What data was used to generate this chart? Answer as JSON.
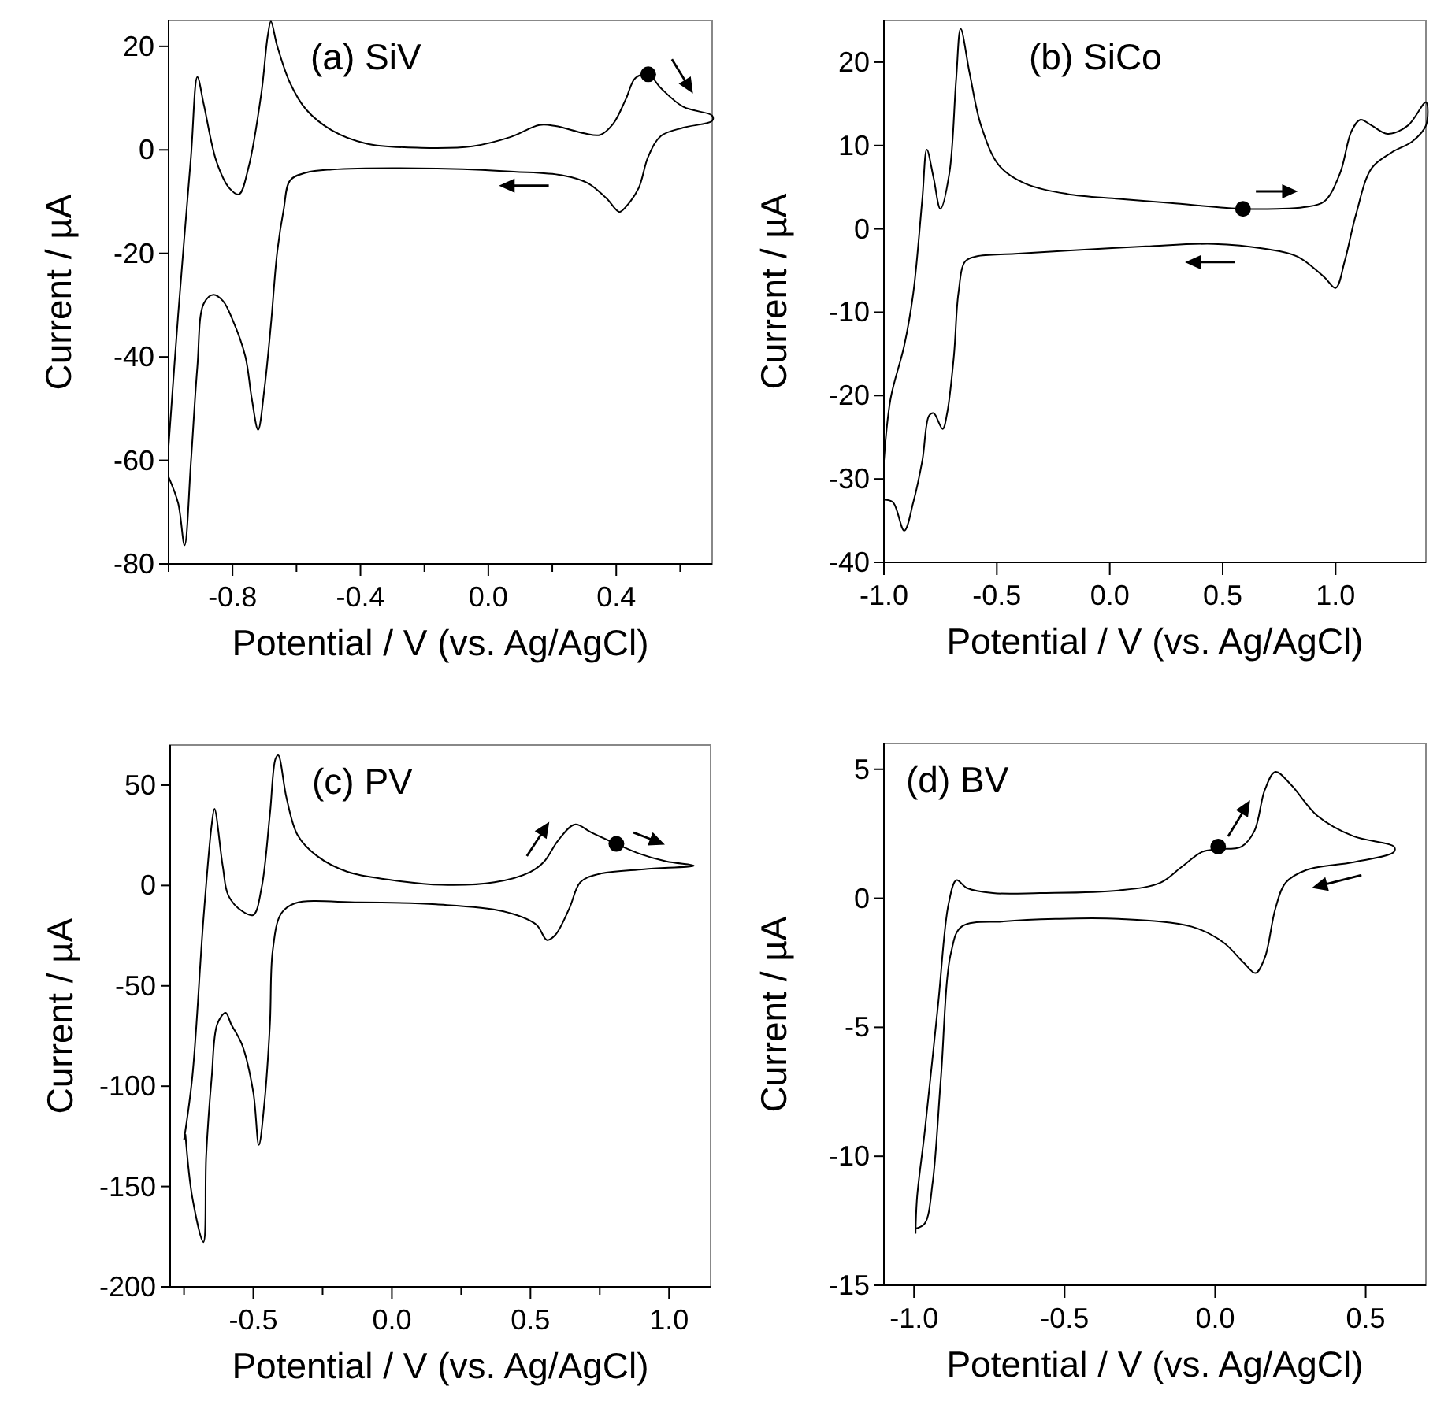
{
  "chart_data": [
    {
      "type": "line",
      "title": "(a) SiV",
      "xlabel": "Potential / V (vs. Ag/AgCl)",
      "ylabel": "Current / µA",
      "xlim": [
        -1.0,
        0.7
      ],
      "ylim": [
        -80,
        25
      ],
      "xticks": [
        {
          "value": -1.0,
          "label": null
        },
        -0.8,
        {
          "value": -0.6,
          "label": null
        },
        -0.4,
        {
          "value": -0.2,
          "label": null
        },
        {
          "value": 0,
          "label": "0.0"
        },
        {
          "value": 0.2,
          "label": null
        },
        0.4,
        {
          "value": 0.6,
          "label": null
        }
      ],
      "yticks": [
        -80,
        -60,
        -40,
        -20,
        0,
        20
      ],
      "marker": "none",
      "line_style": "solid",
      "series": [
        {
          "color": "#000000",
          "x": [
            -1.0,
            -0.97,
            -0.93,
            -0.91,
            -0.89,
            -0.85,
            -0.81,
            -0.78,
            -0.75,
            -0.71,
            -0.69,
            -0.68,
            -0.66,
            -0.62,
            -0.57,
            -0.49,
            -0.38,
            -0.21,
            -0.05,
            0.07,
            0.16,
            0.21,
            0.3,
            0.35,
            0.39,
            0.43,
            0.46,
            0.5,
            0.54,
            0.61,
            0.7,
            0.7,
            0.61,
            0.54,
            0.5,
            0.47,
            0.43,
            0.41,
            0.37,
            0.31,
            0.23,
            0.08,
            -0.16,
            -0.49,
            -0.57,
            -0.62,
            -0.64,
            -0.66,
            -0.68,
            -0.7,
            -0.72,
            -0.74,
            -0.76,
            -0.8,
            -0.83,
            -0.86,
            -0.89,
            -0.91,
            -0.93,
            -0.95,
            -0.97,
            -1.0
          ],
          "values": [
            -57.2,
            -31.8,
            -1.3,
            14.1,
            8.8,
            -2.3,
            -7.4,
            -8.6,
            -3.4,
            10.9,
            22.0,
            24.8,
            20.0,
            12.9,
            7.8,
            3.8,
            1.2,
            0.4,
            0.7,
            2.5,
            4.8,
            4.6,
            3.2,
            2.9,
            5.0,
            9.8,
            13.9,
            14.6,
            11.9,
            8.3,
            6.6,
            5.6,
            4.3,
            2.7,
            -1.3,
            -7.4,
            -11.0,
            -12.0,
            -9.4,
            -6.4,
            -4.9,
            -4.2,
            -3.6,
            -3.8,
            -4.4,
            -5.9,
            -11.5,
            -19.6,
            -33.8,
            -46.0,
            -54.1,
            -48.0,
            -39.9,
            -32.8,
            -29.2,
            -28.0,
            -29.7,
            -41.9,
            -60.2,
            -76.4,
            -68.3,
            -63.2
          ]
        },
        {
          "type": "scatter",
          "marker": "circle",
          "color": "#000000",
          "x": [
            0.5
          ],
          "values": [
            14.6
          ]
        }
      ]
    },
    {
      "type": "line",
      "title": "(b) SiCo",
      "xlabel": "Potential / V (vs. Ag/AgCl)",
      "ylabel": "Current / µA",
      "xlim": [
        -1.0,
        1.4
      ],
      "ylim": [
        -40,
        25
      ],
      "xticks": [
        {
          "value": -1,
          "label": "-1.0"
        },
        -0.5,
        {
          "value": 0,
          "label": "0.0"
        },
        0.5,
        {
          "value": 1,
          "label": "1.0"
        }
      ],
      "yticks": [
        -40,
        -30,
        -20,
        -10,
        0,
        10,
        20
      ],
      "marker": "none",
      "line_style": "solid",
      "series": [
        {
          "color": "#000000",
          "x": [
            -1.0,
            -0.97,
            -0.91,
            -0.87,
            -0.83,
            -0.81,
            -0.78,
            -0.75,
            -0.71,
            -0.68,
            -0.66,
            -0.62,
            -0.57,
            -0.49,
            -0.38,
            -0.19,
            0.04,
            0.27,
            0.59,
            0.74,
            0.86,
            0.95,
            1.02,
            1.07,
            1.11,
            1.16,
            1.23,
            1.32,
            1.4,
            1.4,
            1.34,
            1.25,
            1.16,
            1.09,
            1.04,
            1.0,
            0.95,
            0.83,
            0.69,
            0.46,
            0.16,
            -0.19,
            -0.42,
            -0.59,
            -0.64,
            -0.67,
            -0.69,
            -0.72,
            -0.74,
            -0.78,
            -0.8,
            -0.83,
            -0.87,
            -0.91,
            -0.96,
            -1.0
          ],
          "values": [
            -27.8,
            -20.3,
            -14.0,
            -7.7,
            3.6,
            9.5,
            6.1,
            2.4,
            6.7,
            18.0,
            24.0,
            18.6,
            12.4,
            7.6,
            5.5,
            4.2,
            3.6,
            3.1,
            2.4,
            2.4,
            2.6,
            3.3,
            6.7,
            11.7,
            13.1,
            12.4,
            11.4,
            12.4,
            15.2,
            12.4,
            10.5,
            9.2,
            7.3,
            1.7,
            -3.9,
            -7.1,
            -5.8,
            -3.3,
            -2.4,
            -1.8,
            -2.1,
            -2.6,
            -3.0,
            -3.3,
            -3.9,
            -7.7,
            -15.2,
            -22.1,
            -24.0,
            -22.1,
            -22.4,
            -27.8,
            -32.8,
            -36.2,
            -32.8,
            -32.5
          ]
        },
        {
          "type": "scatter",
          "marker": "circle",
          "color": "#000000",
          "x": [
            0.59
          ],
          "values": [
            2.4
          ]
        }
      ]
    },
    {
      "type": "line",
      "title": "(c) PV",
      "xlabel": "Potential / V (vs. Ag/AgCl)",
      "ylabel": "Current / µA",
      "xlim": [
        -0.8,
        1.15
      ],
      "ylim": [
        -200,
        70
      ],
      "xticks": [
        {
          "value": -0.75,
          "label": null
        },
        -0.5,
        {
          "value": -0.25,
          "label": null
        },
        {
          "value": 0,
          "label": "0.0"
        },
        {
          "value": 0.25,
          "label": null
        },
        0.5,
        {
          "value": 0.75,
          "label": null
        },
        {
          "value": 1,
          "label": "1.0"
        }
      ],
      "yticks": [
        -200,
        -150,
        -100,
        -50,
        0,
        50
      ],
      "marker": "none",
      "line_style": "solid",
      "series": [
        {
          "color": "#000000",
          "x": [
            -0.75,
            -0.72,
            -0.68,
            -0.65,
            -0.64,
            -0.61,
            -0.59,
            -0.54,
            -0.5,
            -0.47,
            -0.44,
            -0.42,
            -0.41,
            -0.38,
            -0.34,
            -0.27,
            -0.16,
            -0.01,
            0.18,
            0.37,
            0.5,
            0.55,
            0.6,
            0.66,
            0.72,
            0.81,
            0.89,
            0.99,
            1.09,
            0.91,
            0.74,
            0.68,
            0.64,
            0.59,
            0.56,
            0.52,
            0.4,
            0.16,
            -0.12,
            -0.35,
            -0.4,
            -0.43,
            -0.44,
            -0.46,
            -0.48,
            -0.5,
            -0.54,
            -0.58,
            -0.6,
            -0.63,
            -0.65,
            -0.67,
            -0.68,
            -0.72,
            -0.745
          ],
          "values": [
            -126.7,
            -95.3,
            -16.8,
            30.4,
            38.2,
            9.4,
            -5.0,
            -12.8,
            -14.7,
            -1.0,
            35.6,
            63.1,
            64.9,
            43.5,
            25.1,
            14.7,
            6.8,
            2.9,
            0.3,
            1.6,
            6.8,
            12.0,
            22.5,
            30.4,
            26.4,
            20.7,
            16.0,
            12.0,
            9.9,
            8.1,
            5.5,
            1.6,
            -11.5,
            -24.6,
            -27.2,
            -19.4,
            -12.8,
            -9.4,
            -8.4,
            -8.9,
            -14.1,
            -32.5,
            -69.1,
            -108.4,
            -129.3,
            -103.1,
            -79.6,
            -69.1,
            -63.4,
            -69.1,
            -95.3,
            -134.6,
            -177.7,
            -155.5,
            -124.0
          ]
        },
        {
          "type": "scatter",
          "marker": "circle",
          "color": "#000000",
          "x": [
            0.81
          ],
          "values": [
            20.7
          ]
        }
      ]
    },
    {
      "type": "line",
      "title": "(d) BV",
      "xlabel": "Potential / V (vs. Ag/AgCl)",
      "ylabel": "Current / µA",
      "xlim": [
        -1.1,
        0.7
      ],
      "ylim": [
        -15,
        6
      ],
      "xticks": [
        {
          "value": -1,
          "label": "-1.0"
        },
        -0.5,
        {
          "value": 0,
          "label": "0.0"
        },
        0.5
      ],
      "yticks": [
        -15,
        -10,
        -5,
        0,
        5
      ],
      "marker": "none",
      "line_style": "solid",
      "series": [
        {
          "color": "#000000",
          "x": [
            -0.995,
            -0.99,
            -0.964,
            -0.92,
            -0.885,
            -0.859,
            -0.825,
            -0.738,
            -0.582,
            -0.321,
            -0.182,
            -0.113,
            -0.043,
            0.009,
            0.087,
            0.13,
            0.165,
            0.2,
            0.252,
            0.339,
            0.46,
            0.594,
            0.594,
            0.46,
            0.304,
            0.234,
            0.2,
            0.165,
            0.134,
            0.095,
            0.026,
            -0.078,
            -0.321,
            -0.53,
            -0.703,
            -0.842,
            -0.877,
            -0.911,
            -0.938,
            -0.964,
            -0.993
          ],
          "values": [
            -13.0,
            -11.6,
            -9.0,
            -4.1,
            -0.2,
            0.7,
            0.4,
            0.2,
            0.2,
            0.3,
            0.6,
            1.2,
            1.8,
            1.9,
            2.0,
            2.6,
            4.2,
            4.9,
            4.4,
            3.2,
            2.4,
            2.0,
            1.8,
            1.4,
            1.1,
            0.6,
            -0.4,
            -2.3,
            -2.9,
            -2.5,
            -1.7,
            -1.1,
            -0.8,
            -0.8,
            -0.9,
            -1.1,
            -2.1,
            -7.0,
            -11.0,
            -12.6,
            -12.8
          ]
        },
        {
          "type": "scatter",
          "marker": "circle",
          "color": "#000000",
          "x": [
            0.01
          ],
          "values": [
            2.0
          ]
        }
      ]
    }
  ]
}
